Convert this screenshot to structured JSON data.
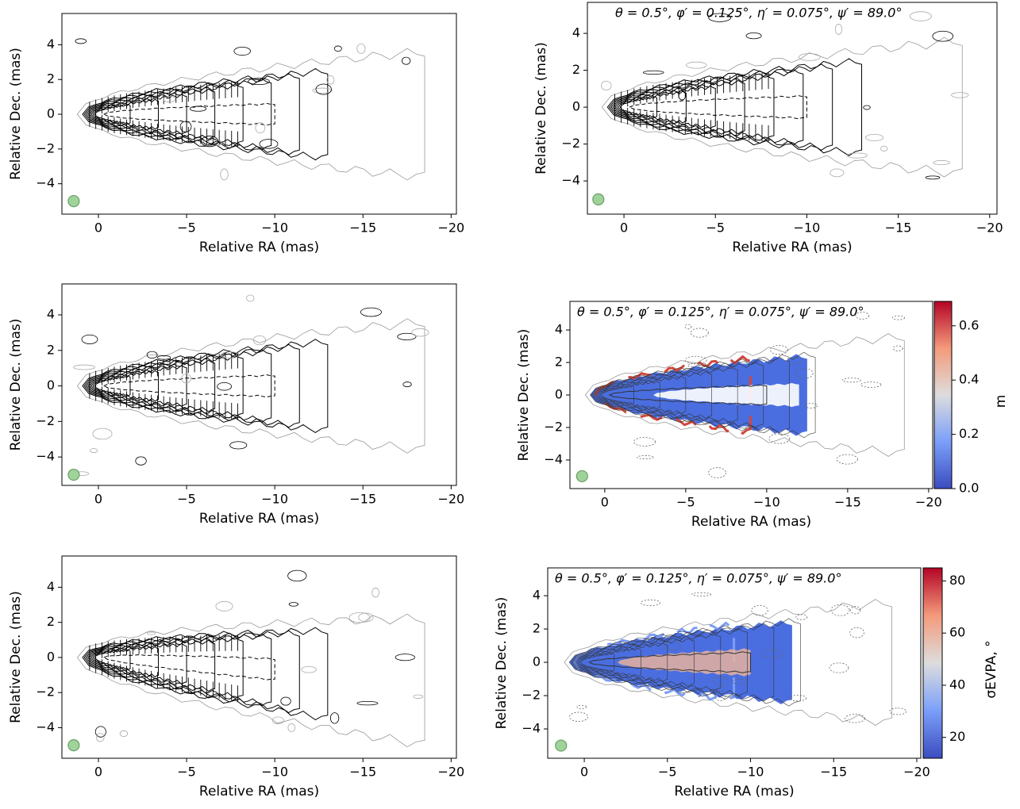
{
  "chart_data": [
    {
      "type": "contour",
      "xlabel": "Relative RA (mas)",
      "ylabel": "Relative Dec. (mas)",
      "xlim": [
        2.07,
        -20.3
      ],
      "ylim": [
        -5.75,
        5.8
      ],
      "xticks": [
        0,
        {
          "value": -5,
          "label": "−5"
        },
        {
          "value": -10,
          "label": "−10"
        },
        {
          "value": -15,
          "label": "−15"
        },
        {
          "value": -20,
          "label": "−20"
        }
      ],
      "yticks": [
        {
          "value": -4,
          "label": "−4"
        },
        {
          "value": -2,
          "label": "−2"
        },
        0,
        2,
        4
      ]
    },
    {
      "type": "contour",
      "xlabel": "Relative RA (mas)",
      "ylabel": "Relative Dec. (mas)",
      "annotation": "θ = 0.5°,  φ′ = 0.125°,  η′ = 0.075°,  ψ′ = 89.0°",
      "xlim": [
        2.0,
        -20.4
      ],
      "ylim": [
        -5.8,
        5.68
      ],
      "xticks": [
        0,
        {
          "value": -5,
          "label": "−5"
        },
        {
          "value": -10,
          "label": "−10"
        },
        {
          "value": -15,
          "label": "−15"
        },
        {
          "value": -20,
          "label": "−20"
        }
      ],
      "yticks": [
        {
          "value": -4,
          "label": "−4"
        },
        {
          "value": -2,
          "label": "−2"
        },
        0,
        2,
        4
      ]
    },
    {
      "type": "contour",
      "xlabel": "Relative RA (mas)",
      "ylabel": "Relative Dec. (mas)",
      "xlim": [
        2.07,
        -20.3
      ],
      "ylim": [
        -5.6,
        5.74
      ],
      "xticks": [
        0,
        {
          "value": -5,
          "label": "−5"
        },
        {
          "value": -10,
          "label": "−10"
        },
        {
          "value": -15,
          "label": "−15"
        },
        {
          "value": -20,
          "label": "−20"
        }
      ],
      "yticks": [
        {
          "value": -4,
          "label": "−4"
        },
        {
          "value": -2,
          "label": "−2"
        },
        0,
        2,
        4
      ]
    },
    {
      "type": "image",
      "xlabel": "Relative RA (mas)",
      "ylabel": "Relative Dec. (mas)",
      "annotation": "θ = 0.5°,  φ′ = 0.125°,  η′ = 0.075°,  ψ′ = 89.0°",
      "xlim": [
        2.15,
        -20.25
      ],
      "ylim": [
        -5.76,
        5.76
      ],
      "xticks": [
        0,
        {
          "value": -5,
          "label": "−5"
        },
        {
          "value": -10,
          "label": "−10"
        },
        {
          "value": -15,
          "label": "−15"
        },
        {
          "value": -20,
          "label": "−20"
        }
      ],
      "yticks": [
        {
          "value": -4,
          "label": "−4"
        },
        {
          "value": -2,
          "label": "−2"
        },
        0,
        2,
        4
      ],
      "colorbar": {
        "label": "m",
        "colormap": "coolwarm",
        "clim": [
          0,
          0.69
        ],
        "ticks": [
          {
            "value": 0,
            "label": "0.0"
          },
          0.2,
          0.4,
          0.6
        ]
      }
    },
    {
      "type": "contour",
      "xlabel": "Relative RA (mas)",
      "ylabel": "Relative Dec. (mas)",
      "xlim": [
        2.07,
        -20.3
      ],
      "ylim": [
        -5.74,
        5.78
      ],
      "xticks": [
        0,
        {
          "value": -5,
          "label": "−5"
        },
        {
          "value": -10,
          "label": "−10"
        },
        {
          "value": -15,
          "label": "−15"
        },
        {
          "value": -20,
          "label": "−20"
        }
      ],
      "yticks": [
        {
          "value": -4,
          "label": "−4"
        },
        {
          "value": -2,
          "label": "−2"
        },
        0,
        2,
        4
      ]
    },
    {
      "type": "image",
      "xlabel": "Relative RA (mas)",
      "ylabel": "Relative Dec. (mas)",
      "annotation": "θ = 0.5°,  φ′ = 0.125°,  η′ = 0.075°,  ψ′ = 89.0°",
      "xlim": [
        2.2,
        -20.24
      ],
      "ylim": [
        -5.76,
        5.67
      ],
      "xticks": [
        0,
        {
          "value": -5,
          "label": "−5"
        },
        {
          "value": -10,
          "label": "−10"
        },
        {
          "value": -15,
          "label": "−15"
        },
        {
          "value": -20,
          "label": "−20"
        }
      ],
      "yticks": [
        {
          "value": -4,
          "label": "−4"
        },
        {
          "value": -2,
          "label": "−2"
        },
        0,
        2,
        4
      ],
      "colorbar": {
        "label": "σEVPA, °",
        "colormap": "coolwarm",
        "clim": [
          12,
          85
        ],
        "ticks": [
          20,
          40,
          60,
          80
        ]
      }
    }
  ]
}
